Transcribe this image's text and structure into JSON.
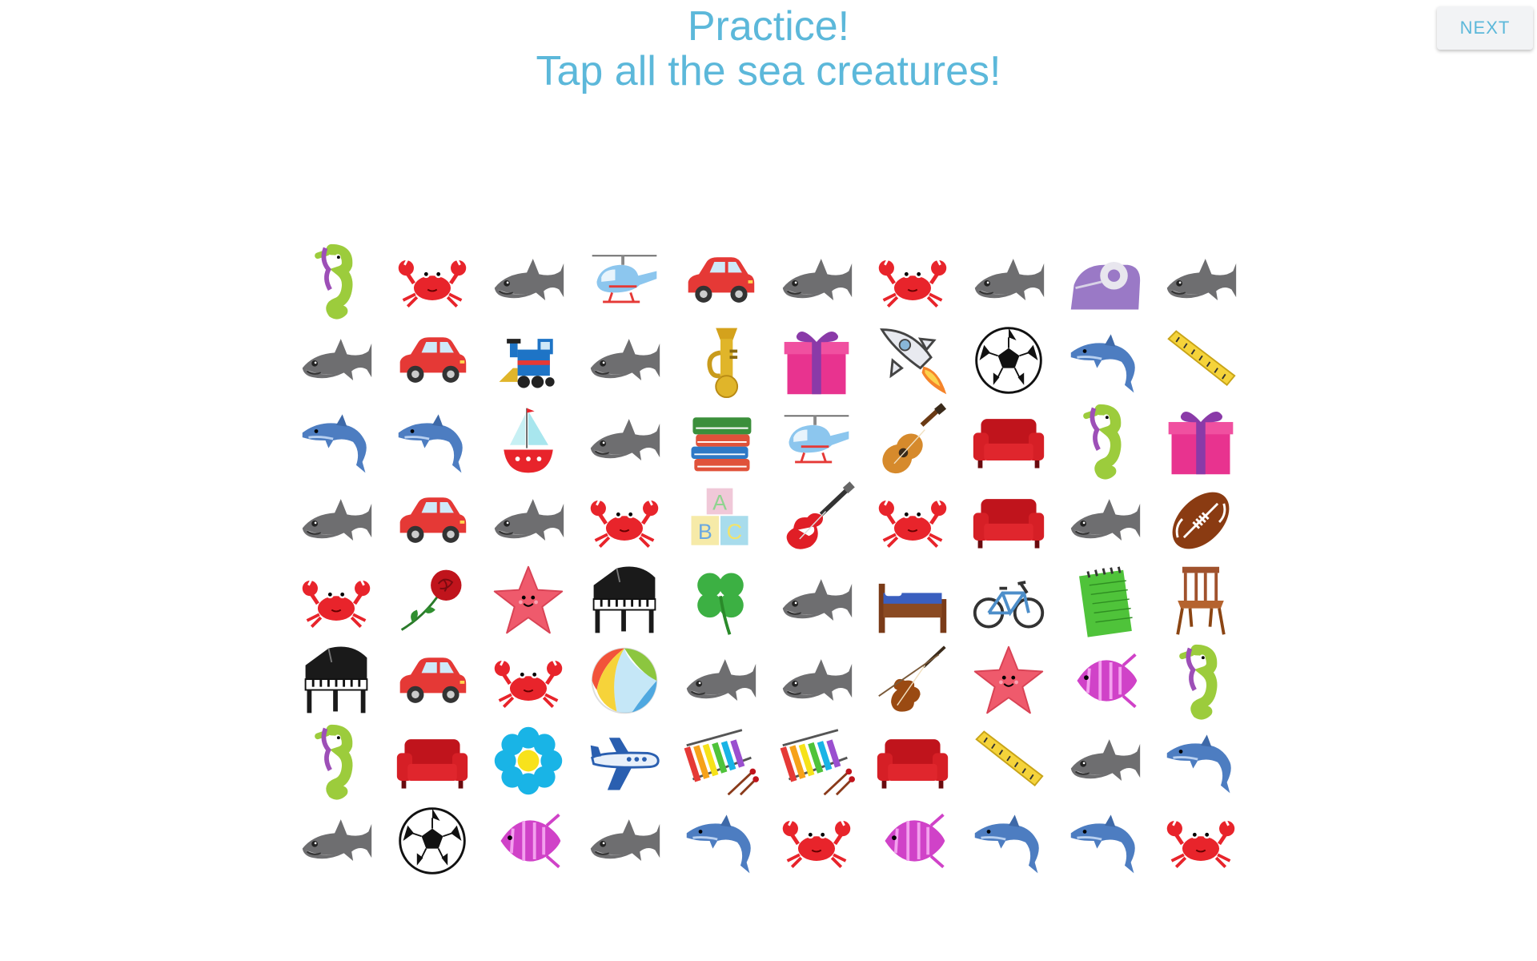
{
  "header": {
    "title": "Practice!",
    "instruction": "Tap all the sea creatures!"
  },
  "next_button": {
    "label": "NEXT"
  },
  "colors": {
    "accent": "#5cb8da",
    "button_bg": "#f2f3f5"
  },
  "grid": {
    "rows": [
      [
        "seahorse",
        "crab",
        "shark",
        "helicopter",
        "car",
        "shark",
        "crab",
        "shark",
        "tape-dispenser",
        "shark"
      ],
      [
        "shark",
        "car",
        "train",
        "shark",
        "tuba",
        "gift",
        "rocket",
        "soccer-ball",
        "dolphin",
        "ruler"
      ],
      [
        "dolphin",
        "dolphin",
        "sailboat",
        "shark",
        "books",
        "helicopter",
        "guitar",
        "sofa",
        "seahorse",
        "gift"
      ],
      [
        "shark",
        "car",
        "shark",
        "crab",
        "abc-blocks",
        "electric-guitar",
        "crab",
        "sofa",
        "shark",
        "football"
      ],
      [
        "crab",
        "rose",
        "starfish",
        "piano",
        "clover",
        "shark",
        "bed",
        "bicycle",
        "notepad",
        "chair"
      ],
      [
        "piano",
        "car",
        "crab",
        "beach-ball",
        "shark",
        "shark",
        "violin",
        "starfish",
        "angelfish",
        "seahorse"
      ],
      [
        "seahorse",
        "sofa",
        "flower",
        "airplane",
        "xylophone",
        "xylophone",
        "sofa",
        "ruler",
        "shark",
        "dolphin"
      ],
      [
        "shark",
        "soccer-ball",
        "angelfish",
        "shark",
        "dolphin",
        "crab",
        "angelfish",
        "dolphin",
        "dolphin",
        "crab"
      ]
    ]
  }
}
